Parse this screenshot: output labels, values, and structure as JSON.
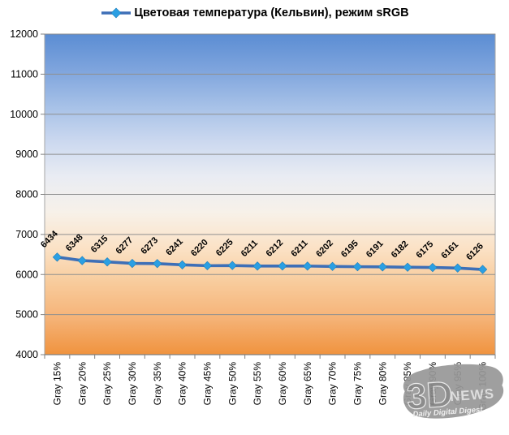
{
  "legend": {
    "label": "Цветовая температура (Кельвин), режим sRGB"
  },
  "watermark": {
    "big": "3D",
    "news": "NEWS",
    "tagline": "Daily Digital Digest"
  },
  "colors": {
    "line": "#3E6FB7",
    "marker_fill": "#2B9FE3",
    "marker_edge": "#1d7db8",
    "grid": "#8f8f8f",
    "border": "#a6a6a6",
    "axis_line": "#808080",
    "tick": "#808080",
    "text": "#000000",
    "gradient_stops": [
      "#5b8dd3",
      "#7ea4dd",
      "#a5c0e7",
      "#cbd8ef",
      "#e9ecf3",
      "#f7f1e9",
      "#fbe2c6",
      "#f8cb9b",
      "#f5b276",
      "#f0933e"
    ]
  },
  "chart_data": {
    "type": "line",
    "title": "Цветовая температура (Кельвин), режим sRGB",
    "categories": [
      "Gray 15%",
      "Gray 20%",
      "Gray 25%",
      "Gray 30%",
      "Gray 35%",
      "Gray 40%",
      "Gray 45%",
      "Gray 50%",
      "Gray 55%",
      "Gray 60%",
      "Gray 65%",
      "Gray 70%",
      "Gray 75%",
      "Gray 80%",
      "Gray 85%",
      "Gray 90%",
      "Gray 95%",
      "Gray 100%"
    ],
    "values": [
      6434,
      6348,
      6315,
      6277,
      6273,
      6241,
      6220,
      6225,
      6211,
      6212,
      6211,
      6202,
      6195,
      6191,
      6182,
      6175,
      6161,
      6126
    ],
    "xlabel": "",
    "ylabel": "",
    "ylim": [
      4000,
      12000
    ],
    "ytick_step": 1000,
    "yticks": [
      4000,
      5000,
      6000,
      7000,
      8000,
      9000,
      10000,
      11000,
      12000
    ],
    "grid": true,
    "legend_position": "top",
    "data_labels": true,
    "data_label_rotation_deg": -45,
    "x_label_rotation_deg": -90
  }
}
